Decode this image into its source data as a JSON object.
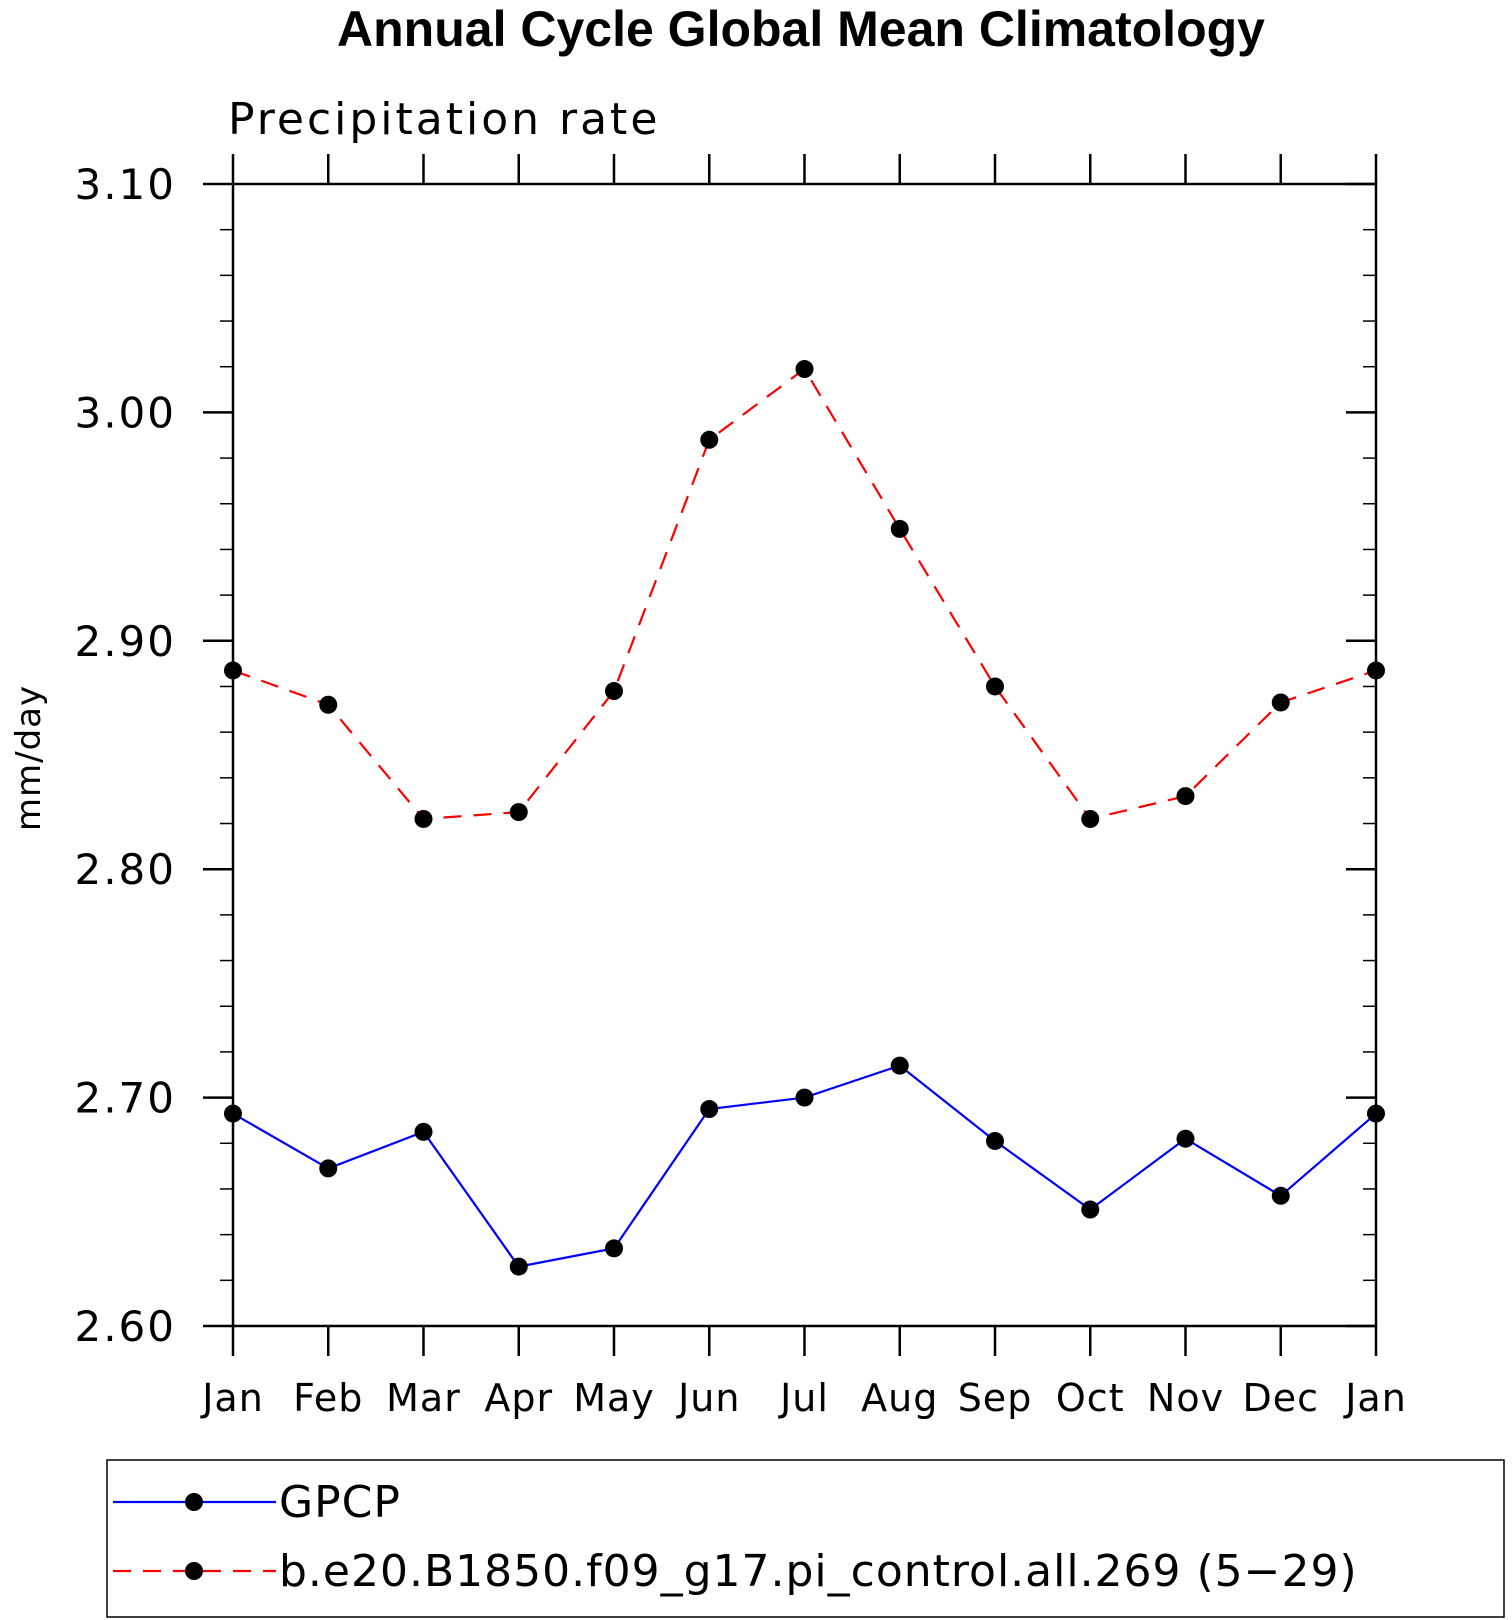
{
  "chart_data": {
    "type": "line",
    "title": "Annual Cycle Global Mean Climatology",
    "subtitle": "Precipitation rate",
    "xlabel": "",
    "ylabel": "mm/day",
    "categories": [
      "Jan",
      "Feb",
      "Mar",
      "Apr",
      "May",
      "Jun",
      "Jul",
      "Aug",
      "Sep",
      "Oct",
      "Nov",
      "Dec",
      "Jan"
    ],
    "ylim": [
      2.6,
      3.1
    ],
    "y_major_ticks": [
      2.6,
      2.7,
      2.8,
      2.9,
      3.0,
      3.1
    ],
    "y_tick_labels": [
      "2.60",
      "2.70",
      "2.80",
      "2.90",
      "3.00",
      "3.10"
    ],
    "y_minor_step": 0.02,
    "grid": false,
    "legend_position": "bottom",
    "series": [
      {
        "name": "GPCP",
        "color": "#0000ff",
        "line_style": "solid",
        "marker": "filled-circle",
        "values": [
          2.693,
          2.669,
          2.685,
          2.626,
          2.634,
          2.695,
          2.7,
          2.714,
          2.681,
          2.651,
          2.682,
          2.657,
          2.693
        ]
      },
      {
        "name": "b.e20.B1850.f09_g17.pi_control.all.269 (5−29)",
        "color": "#ff0000",
        "line_style": "dashed",
        "marker": "filled-circle",
        "values": [
          2.887,
          2.872,
          2.822,
          2.825,
          2.878,
          2.988,
          3.019,
          2.949,
          2.88,
          2.822,
          2.832,
          2.873,
          2.887
        ]
      }
    ]
  }
}
